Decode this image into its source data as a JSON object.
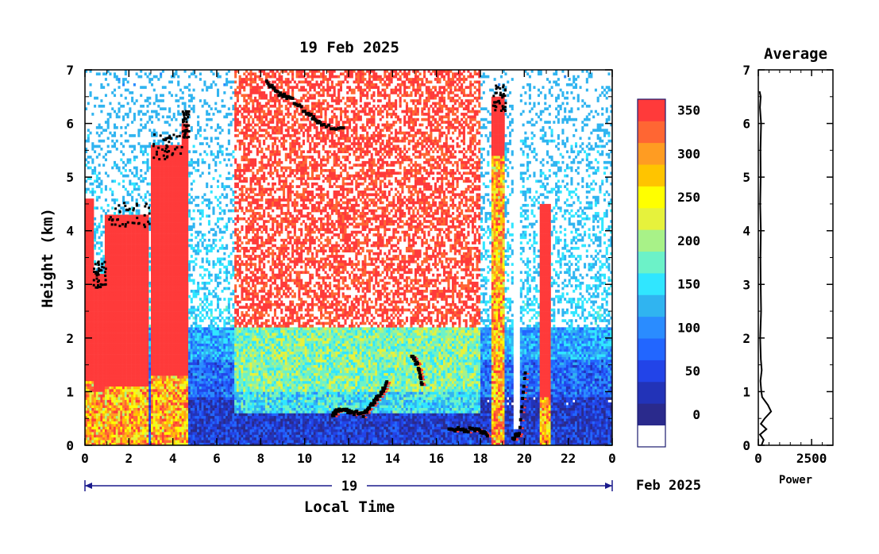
{
  "chart_data": [
    {
      "type": "heatmap",
      "title": "19 Feb 2025",
      "xlabel": "Local Time",
      "ylabel": "Height (km)",
      "xlim": [
        0,
        24
      ],
      "ylim": [
        0,
        7
      ],
      "x_ticks": [
        "0",
        "2",
        "4",
        "6",
        "8",
        "10",
        "12",
        "14",
        "16",
        "18",
        "20",
        "22",
        "0"
      ],
      "y_ticks": [
        "0",
        "1",
        "2",
        "3",
        "4",
        "5",
        "6",
        "7"
      ],
      "date_label": "19",
      "date_suffix": "Feb 2025",
      "colorbar": {
        "ticks": [
          "0",
          "50",
          "100",
          "150",
          "200",
          "250",
          "300",
          "350"
        ],
        "min": 0,
        "max": 375,
        "step": 25,
        "colors": [
          "#ffffff",
          "#2a2a8c",
          "#2233b8",
          "#2244e8",
          "#2266ff",
          "#2a8cff",
          "#30b4f0",
          "#30e6ff",
          "#6cf2c8",
          "#a8f288",
          "#e6f23c",
          "#ffff00",
          "#ffc400",
          "#ff9c22",
          "#ff6633",
          "#ff3a3a"
        ]
      },
      "columns": [
        {
          "t0": 0.0,
          "t1": 0.35,
          "top": 4.6,
          "mid": 1.2,
          "black_top": false
        },
        {
          "t0": 0.35,
          "t1": 0.9,
          "top": 3.2,
          "mid": 1.0,
          "black_top": true
        },
        {
          "t0": 0.9,
          "t1": 2.9,
          "top": 4.3,
          "mid": 1.1,
          "black_top": true
        },
        {
          "t0": 3.05,
          "t1": 4.4,
          "top": 5.6,
          "mid": 1.3,
          "black_top": true
        },
        {
          "t0": 4.4,
          "t1": 4.7,
          "top": 6.0,
          "mid": 1.3,
          "black_top": true
        },
        {
          "t0": 20.75,
          "t1": 21.2,
          "top": 4.5,
          "mid": 0.9,
          "black_top": false
        },
        {
          "t0": 18.5,
          "t1": 19.1,
          "top": 6.5,
          "mid": 5.4,
          "black_top": true
        }
      ],
      "black_segments": [
        {
          "x": [
            11.2,
            11.5,
            12.0,
            12.6,
            13.0,
            13.4,
            13.7
          ],
          "y": [
            0.6,
            0.7,
            0.65,
            0.6,
            0.8,
            1.0,
            1.2
          ]
        },
        {
          "x": [
            14.8,
            15.1,
            15.3
          ],
          "y": [
            1.7,
            1.5,
            1.1
          ]
        },
        {
          "x": [
            16.5,
            17.2,
            17.8,
            18.3
          ],
          "y": [
            0.35,
            0.3,
            0.35,
            0.2
          ]
        },
        {
          "x": [
            19.4,
            19.7,
            20.0
          ],
          "y": [
            0.15,
            0.25,
            1.5
          ]
        },
        {
          "x": [
            8.2,
            8.7,
            9.3,
            10.1,
            10.7,
            11.8
          ],
          "y": [
            6.8,
            6.6,
            6.5,
            6.2,
            6.0,
            5.9
          ]
        }
      ],
      "clear_gap": {
        "t0": 19.5,
        "t1": 19.8
      }
    },
    {
      "type": "line",
      "title": "Average",
      "xlabel": "Power",
      "ylabel": "",
      "xlim": [
        0,
        3500
      ],
      "ylim": [
        0,
        7
      ],
      "x_ticks": [
        "0",
        "2500"
      ],
      "y_ticks": [
        "0",
        "1",
        "2",
        "3",
        "4",
        "5",
        "6",
        "7"
      ],
      "series": [
        {
          "x": [
            150,
            250,
            80,
            380,
            120,
            300,
            600,
            450,
            180,
            140,
            100,
            160,
            120,
            90,
            130,
            110,
            100,
            120,
            90,
            110,
            100,
            130,
            80,
            110,
            60
          ],
          "y": [
            0.0,
            0.1,
            0.2,
            0.3,
            0.4,
            0.5,
            0.63,
            0.75,
            0.9,
            1.0,
            1.2,
            1.4,
            1.6,
            2.0,
            2.5,
            3.0,
            3.5,
            4.0,
            4.5,
            5.0,
            5.5,
            6.0,
            6.3,
            6.5,
            6.6
          ]
        }
      ]
    }
  ]
}
